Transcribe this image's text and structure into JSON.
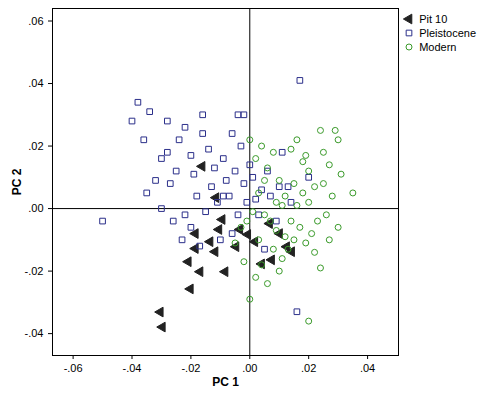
{
  "chart_data": {
    "type": "scatter",
    "x_label": "PC 1",
    "y_label": "PC 2",
    "xlim": [
      -0.067,
      0.0505
    ],
    "ylim": [
      -0.047,
      0.064
    ],
    "xticks": [
      {
        "value": -0.06,
        "label": "-.06"
      },
      {
        "value": -0.04,
        "label": "-.04"
      },
      {
        "value": -0.02,
        "label": "-.02"
      },
      {
        "value": 0,
        "label": ".00"
      },
      {
        "value": 0.02,
        "label": ".02"
      },
      {
        "value": 0.04,
        "label": ".04"
      }
    ],
    "yticks": [
      {
        "value": -0.04,
        "label": "-.04"
      },
      {
        "value": -0.02,
        "label": "-.02"
      },
      {
        "value": 0,
        "label": ".00"
      },
      {
        "value": 0.02,
        "label": ".02"
      },
      {
        "value": 0.04,
        "label": ".04"
      },
      {
        "value": 0.06,
        "label": ".06"
      }
    ],
    "reference_lines": {
      "x": 0,
      "y": 0
    },
    "grid": false,
    "legend": "top-right",
    "series": [
      {
        "name": "Pit 10",
        "color": "#222222",
        "marker": "triangle-left",
        "x": [
          -0.0162,
          -0.0115,
          -0.0094,
          -0.0105,
          -0.0185,
          -0.0135,
          -0.0185,
          -0.0118,
          -0.0209,
          -0.0169,
          -0.0202,
          -0.0084,
          -0.0034,
          -0.0007,
          0.0017,
          0.004,
          0.0074,
          0.0101,
          0.0125,
          0.0142,
          -0.0304,
          -0.0297,
          0.0067,
          -0.0047
        ],
        "y": [
          0.0135,
          0.0035,
          -0.0035,
          -0.0067,
          -0.008,
          -0.0106,
          -0.0128,
          -0.0138,
          -0.017,
          -0.0202,
          -0.0257,
          -0.0202,
          -0.0067,
          -0.0083,
          -0.0106,
          -0.0177,
          -0.0164,
          -0.008,
          -0.0122,
          -0.0138,
          -0.0331,
          -0.0379,
          -0.0048,
          -0.0122
        ]
      },
      {
        "name": "Pleistocene",
        "color": "#2b2f8a",
        "marker": "square",
        "x": [
          -0.05,
          -0.04,
          -0.038,
          -0.036,
          -0.034,
          -0.03,
          -0.028,
          -0.032,
          -0.035,
          -0.03,
          -0.027,
          -0.025,
          -0.024,
          -0.022,
          -0.02,
          -0.019,
          -0.018,
          -0.022,
          -0.026,
          -0.02,
          -0.016,
          -0.014,
          -0.012,
          -0.013,
          -0.011,
          -0.015,
          -0.009,
          -0.008,
          -0.006,
          -0.004,
          -0.002,
          -0.003,
          -0.005,
          -0.007,
          -0.004,
          -0.002,
          0.0,
          -0.001,
          0.001,
          0.002,
          0.003,
          0.004,
          0.006,
          0.007,
          0.009,
          0.01,
          0.011,
          0.013,
          0.014,
          0.017,
          0.016,
          -0.01,
          -0.017,
          -0.023,
          -0.006,
          0.005,
          -0.028,
          -0.016,
          -0.009,
          0.02
        ],
        "y": [
          -0.004,
          0.028,
          0.034,
          0.022,
          0.031,
          0.016,
          0.018,
          0.009,
          0.005,
          0.0,
          0.008,
          0.012,
          0.022,
          0.026,
          0.017,
          0.011,
          0.004,
          -0.002,
          -0.004,
          -0.006,
          0.024,
          0.019,
          0.013,
          0.007,
          0.002,
          -0.001,
          0.016,
          0.009,
          0.024,
          0.03,
          0.03,
          0.02,
          0.012,
          0.004,
          -0.002,
          0.008,
          0.014,
          0.002,
          0.01,
          0.003,
          -0.002,
          0.006,
          0.012,
          0.004,
          -0.004,
          0.007,
          0.018,
          0.007,
          0.002,
          0.041,
          -0.033,
          -0.01,
          -0.012,
          -0.01,
          -0.008,
          -0.013,
          0.028,
          0.03,
          0.004,
          0.01
        ]
      },
      {
        "name": "Modern",
        "color": "#3a9a2a",
        "marker": "circle",
        "x": [
          0.0,
          0.002,
          0.004,
          0.006,
          0.008,
          0.01,
          0.012,
          0.014,
          0.016,
          0.018,
          0.02,
          0.022,
          0.024,
          0.025,
          0.027,
          0.029,
          0.03,
          0.031,
          0.035,
          0.028,
          0.026,
          0.023,
          0.021,
          0.019,
          0.017,
          0.015,
          0.013,
          0.011,
          0.009,
          0.007,
          0.005,
          0.003,
          0.001,
          -0.001,
          -0.003,
          -0.005,
          -0.002,
          0.0,
          0.002,
          0.004,
          0.006,
          0.008,
          0.01,
          0.012,
          0.014,
          0.016,
          0.018,
          0.02,
          0.022,
          0.024,
          0.027,
          0.03,
          0.02,
          0.011,
          0.005,
          0.009,
          0.015,
          0.025,
          0.003,
          0.019
        ],
        "y": [
          0.022,
          0.016,
          0.02,
          0.013,
          0.018,
          0.009,
          0.004,
          0.019,
          0.022,
          0.015,
          0.012,
          0.007,
          0.025,
          0.018,
          0.014,
          0.025,
          0.022,
          0.011,
          0.005,
          0.004,
          -0.002,
          -0.004,
          -0.008,
          -0.011,
          -0.006,
          -0.01,
          -0.013,
          -0.016,
          -0.007,
          -0.004,
          -0.002,
          0.005,
          -0.001,
          -0.004,
          -0.006,
          -0.011,
          -0.017,
          -0.029,
          -0.022,
          -0.018,
          -0.024,
          -0.013,
          -0.02,
          -0.009,
          -0.004,
          0.001,
          0.005,
          0.002,
          -0.014,
          -0.019,
          -0.01,
          -0.006,
          -0.036,
          0.001,
          0.009,
          0.002,
          0.008,
          0.008,
          -0.01,
          0.017
        ]
      }
    ]
  }
}
